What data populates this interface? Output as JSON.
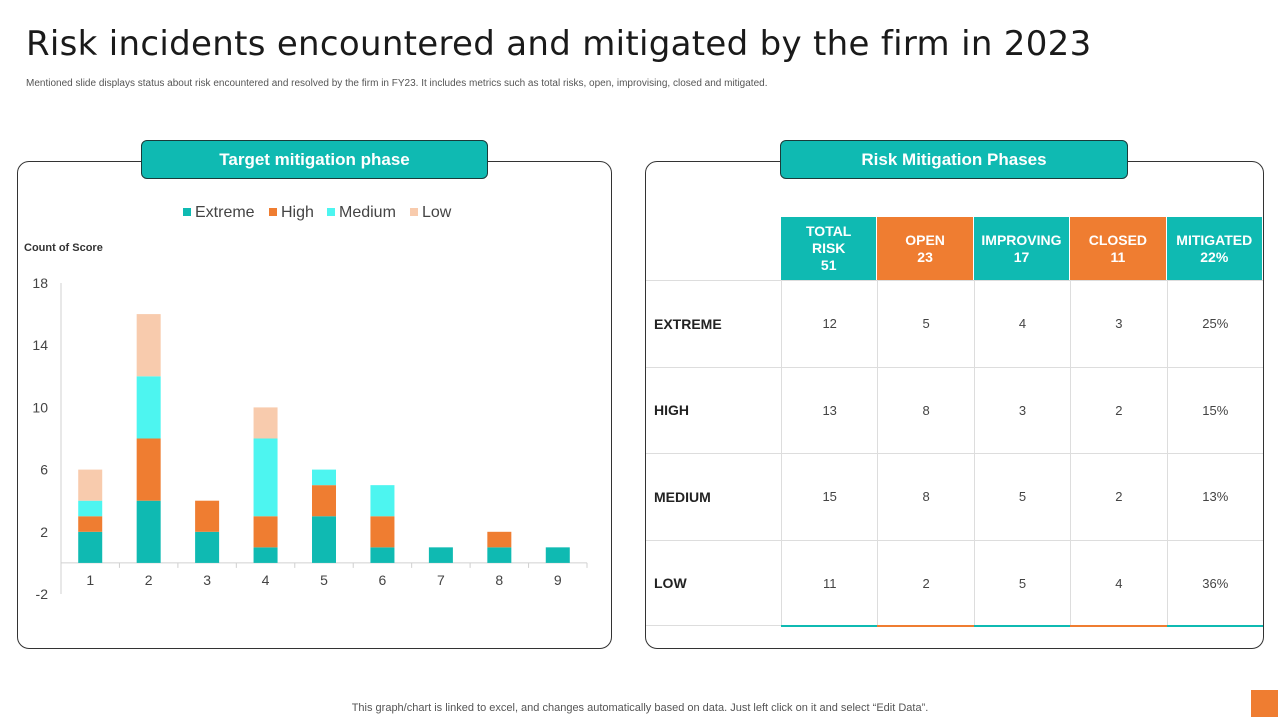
{
  "page": {
    "title": "Risk incidents encountered and mitigated by the firm in 2023",
    "subtitle": "Mentioned slide displays status about risk encountered and resolved by the firm in FY23. It includes metrics such as total risks, open, improvising, closed and mitigated.",
    "footer": "This graph/chart is linked to excel,  and changes automatically based on data. Just left click on it and select “Edit Data”."
  },
  "left_panel": {
    "header": "Target mitigation phase"
  },
  "right_panel": {
    "header": "Risk Mitigation Phases"
  },
  "chart_data": {
    "type": "bar",
    "stacked": true,
    "categories": [
      "1",
      "2",
      "3",
      "4",
      "5",
      "6",
      "7",
      "8",
      "9"
    ],
    "series": [
      {
        "name": "Extreme",
        "color": "#0fbab2",
        "values": [
          2,
          4,
          2,
          1,
          3,
          1,
          1,
          1,
          1
        ]
      },
      {
        "name": "High",
        "color": "#ef7d31",
        "values": [
          1,
          4,
          2,
          2,
          2,
          2,
          0,
          1,
          0
        ]
      },
      {
        "name": "Medium",
        "color": "#4df5f0",
        "values": [
          1,
          4,
          0,
          5,
          1,
          2,
          0,
          0,
          0
        ]
      },
      {
        "name": "Low",
        "color": "#f8cbad",
        "values": [
          2,
          4,
          0,
          2,
          0,
          0,
          0,
          0,
          0
        ]
      }
    ],
    "ylabel": "Count of Score",
    "yticks": [
      18,
      14,
      10,
      6,
      2,
      -2
    ],
    "ylim": [
      -2,
      18
    ],
    "legend_position": "top"
  },
  "table": {
    "headers": [
      {
        "lines": [
          "TOTAL",
          "RISK",
          "51"
        ],
        "color": "#0fbab2"
      },
      {
        "lines": [
          "OPEN",
          "23"
        ],
        "color": "#ef7d31"
      },
      {
        "lines": [
          "IMPROVING",
          "17"
        ],
        "color": "#0fbab2"
      },
      {
        "lines": [
          "CLOSED",
          "11"
        ],
        "color": "#ef7d31"
      },
      {
        "lines": [
          "MITIGATED",
          "22%"
        ],
        "color": "#0fbab2"
      }
    ],
    "rows": [
      {
        "label": "EXTREME",
        "values": [
          "12",
          "5",
          "4",
          "3",
          "25%"
        ]
      },
      {
        "label": "HIGH",
        "values": [
          "13",
          "8",
          "3",
          "2",
          "15%"
        ]
      },
      {
        "label": "MEDIUM",
        "values": [
          "15",
          "8",
          "5",
          "2",
          "13%"
        ]
      },
      {
        "label": "LOW",
        "values": [
          "11",
          "2",
          "5",
          "4",
          "36%"
        ]
      }
    ]
  }
}
